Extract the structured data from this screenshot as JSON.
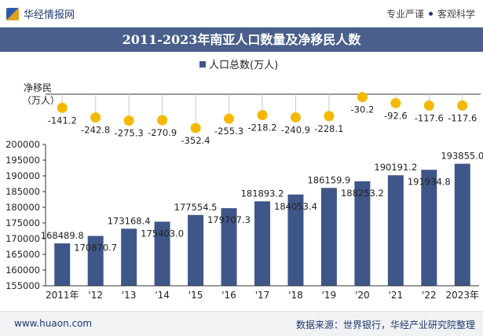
{
  "header": {
    "brand": "华经情报网",
    "tagline_left": "专业严谨",
    "tagline_right": "客观科学"
  },
  "title": "2011-2023年南亚人口数量及净移民人数",
  "footer": {
    "url": "www.huaon.com",
    "source": "数据来源：世界银行，华经产业研究院整理"
  },
  "colors": {
    "bar": "#3f5688",
    "dot": "#f5b800",
    "title_bg": "#4a5f8c"
  },
  "chart_data": {
    "type": "bar",
    "categories": [
      "2011年",
      "'12",
      "'13",
      "'14",
      "'15",
      "'16",
      "'17",
      "'18",
      "'19",
      "'20",
      "'21",
      "'22",
      "2023年"
    ],
    "legend": "人口总数(万人)",
    "series": [
      {
        "name": "人口总数(万人)",
        "type": "bar",
        "values": [
          168489.8,
          170870.7,
          173168.4,
          175403.0,
          177554.5,
          179707.3,
          181893.2,
          184053.4,
          186159.9,
          188253.2,
          190191.2,
          191934.8,
          193855.0
        ],
        "labels": [
          "168489.8",
          "170870.7",
          "173168.4",
          "175403.0",
          "177554.5",
          "179707.3",
          "181893.2",
          "184053.4",
          "186159.9",
          "188253.2",
          "190191.2",
          "191934.8",
          "193855.0"
        ]
      },
      {
        "type": "dot",
        "values": [
          -141.2,
          -242.8,
          -275.3,
          -270.9,
          -352.4,
          -255.3,
          -218.2,
          -240.9,
          -228.1,
          -30.2,
          -92.6,
          -117.6,
          -117.6
        ],
        "labels": [
          "-141.2",
          "-242.8",
          "-275.3",
          "-270.9",
          "-352.4",
          "-255.3",
          "-218.2",
          "-240.9",
          "-228.1",
          "-30.2",
          "-92.6",
          "-117.6",
          "-117.6"
        ]
      }
    ],
    "top_axis_label": [
      "净移民",
      "（万人）"
    ],
    "ylim": [
      155000,
      200000
    ],
    "yticks": [
      155000,
      160000,
      165000,
      170000,
      175000,
      180000,
      185000,
      190000,
      195000,
      200000
    ],
    "grid": false
  }
}
